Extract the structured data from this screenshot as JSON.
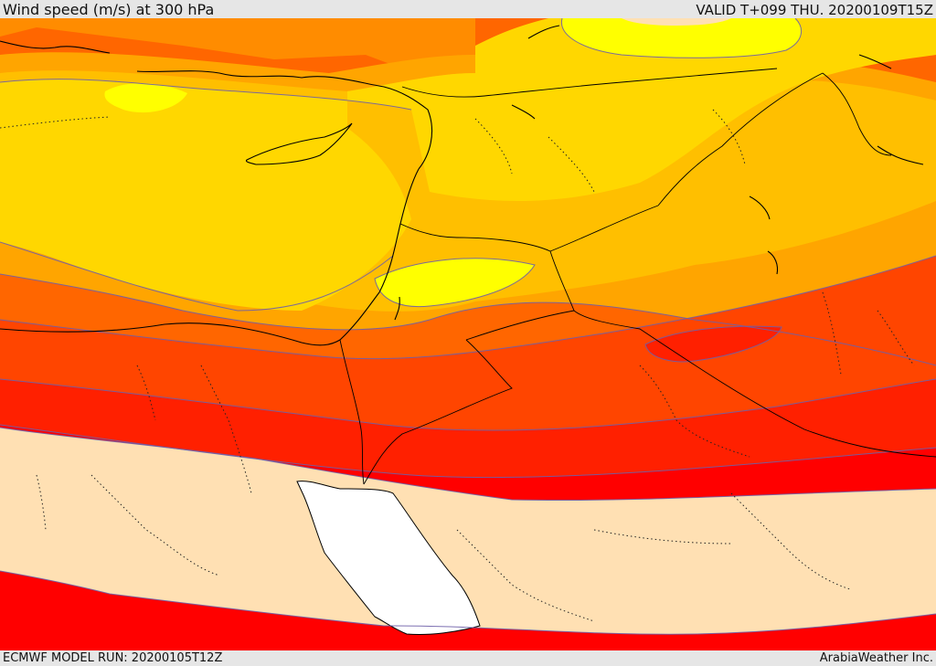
{
  "header": {
    "title": "Wind speed (m/s) at 300 hPa",
    "valid": "VALID T+099 THU. 20200109T15Z"
  },
  "footer": {
    "model_run": "ECMWF MODEL RUN: 20200105T12Z",
    "credit": "ArabiaWeather Inc."
  },
  "map": {
    "variable": "wind speed",
    "level": "300 hPa",
    "units": "m/s",
    "palette": [
      "#ffe0b3",
      "#ffff00",
      "#ffd700",
      "#ffbf00",
      "#ffa500",
      "#ff8c00",
      "#ff6600",
      "#ff4500",
      "#ff2000",
      "#ff0000"
    ],
    "sea_color": "#ffffff",
    "background_color": "#e6e6e6"
  }
}
